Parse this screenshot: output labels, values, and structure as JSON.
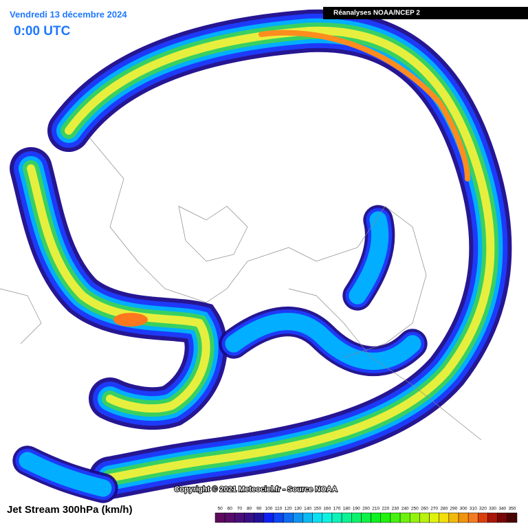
{
  "header": {
    "date": "Vendredi 13 décembre 2024",
    "time": "0:00 UTC",
    "source": "Réanalyses NOAA/NCEP 2"
  },
  "footer": {
    "copyright": "Copyright © 2021 Meteociel.fr - Source NOAA",
    "title": "Jet Stream 300hPa (km/h)"
  },
  "legend": {
    "values": [
      50,
      60,
      70,
      80,
      90,
      100,
      110,
      120,
      130,
      140,
      150,
      160,
      170,
      180,
      190,
      200,
      210,
      220,
      230,
      240,
      250,
      260,
      270,
      280,
      290,
      300,
      310,
      320,
      330,
      340,
      350
    ]
  }
}
